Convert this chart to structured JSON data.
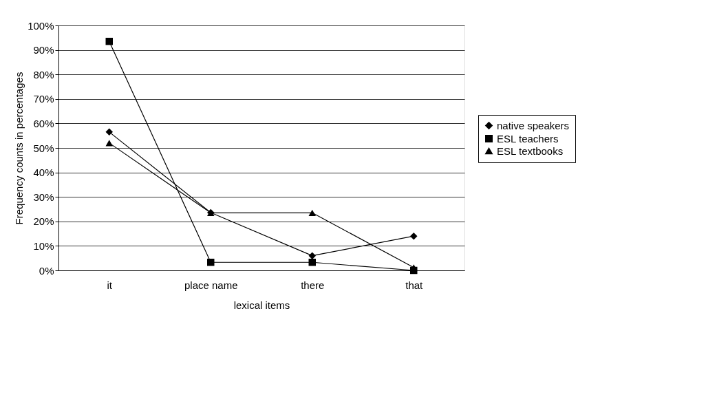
{
  "chart_data": {
    "type": "line",
    "xlabel": "lexical items",
    "ylabel": "Frequency counts in percentages",
    "categories": [
      "it",
      "place name",
      "there",
      "that"
    ],
    "series": [
      {
        "name": "native speakers",
        "color": "#000000",
        "marker": "diamond",
        "values": [
          56.5,
          23.6,
          6,
          14
        ]
      },
      {
        "name": "ESL teachers",
        "color": "#000000",
        "marker": "square",
        "values": [
          93.5,
          3.3,
          3.3,
          0
        ]
      },
      {
        "name": "ESL textbooks",
        "color": "#000000",
        "marker": "triangle",
        "values": [
          52,
          23.5,
          23.5,
          1.2
        ]
      }
    ],
    "ylim": [
      0,
      100
    ],
    "yticks": [
      {
        "value": 0,
        "label": "0%"
      },
      {
        "value": 10,
        "label": "10%"
      },
      {
        "value": 20,
        "label": "20%"
      },
      {
        "value": 30,
        "label": "30%"
      },
      {
        "value": 40,
        "label": "40%"
      },
      {
        "value": 50,
        "label": "50%"
      },
      {
        "value": 60,
        "label": "60%"
      },
      {
        "value": 70,
        "label": "70%"
      },
      {
        "value": 80,
        "label": "80%"
      },
      {
        "value": 90,
        "label": "90%"
      },
      {
        "value": 100,
        "label": "100%"
      }
    ],
    "grid": "y",
    "legend": "right",
    "line_style": "solid"
  }
}
